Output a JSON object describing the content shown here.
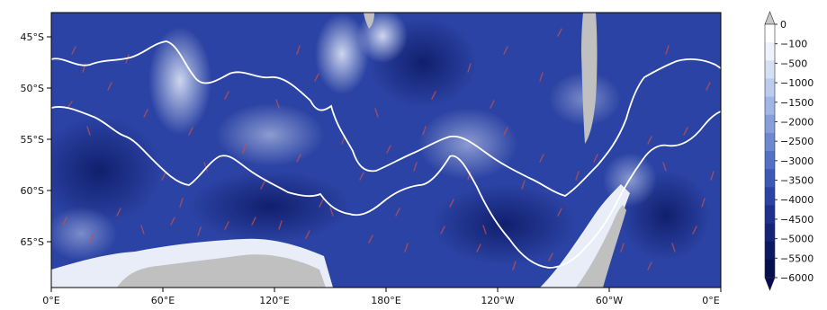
{
  "chart_data": {
    "type": "heatmap",
    "title": "",
    "xlabel": "",
    "ylabel": "",
    "x_ticks": [
      "0°E",
      "60°E",
      "120°E",
      "180°E",
      "120°W",
      "60°W",
      "0°E"
    ],
    "y_ticks": [
      "45°S",
      "50°S",
      "55°S",
      "60°S",
      "65°S"
    ],
    "lon_range": [
      0,
      360
    ],
    "lat_range": [
      -70,
      -42
    ],
    "colorbar": {
      "levels": [
        0,
        -100,
        -500,
        -1000,
        -1500,
        -2000,
        -2500,
        -3000,
        -3500,
        -4000,
        -4500,
        -5000,
        -5500,
        -6000
      ],
      "labels": [
        "0",
        "−100",
        "−500",
        "−1000",
        "−1500",
        "−2000",
        "−2500",
        "−3000",
        "−3500",
        "−4000",
        "−4500",
        "−5000",
        "−5500",
        "−6000"
      ],
      "colors": [
        "#ffffff",
        "#eef2fb",
        "#d6e0f5",
        "#bccbee",
        "#a1b5e6",
        "#869fdc",
        "#6c88d2",
        "#5270c6",
        "#3c59b7",
        "#2b43a4",
        "#1f318f",
        "#152379",
        "#0d1863",
        "#07104e"
      ],
      "extend": "both",
      "upper_extension_color": "#c8c8c8",
      "lower_extension_color": "#060a58"
    },
    "overlays": {
      "fronts": {
        "color": "#ffffff",
        "count": 2
      },
      "red_markings_color": "#c0504d",
      "land_color": "#c0c0c0"
    }
  }
}
